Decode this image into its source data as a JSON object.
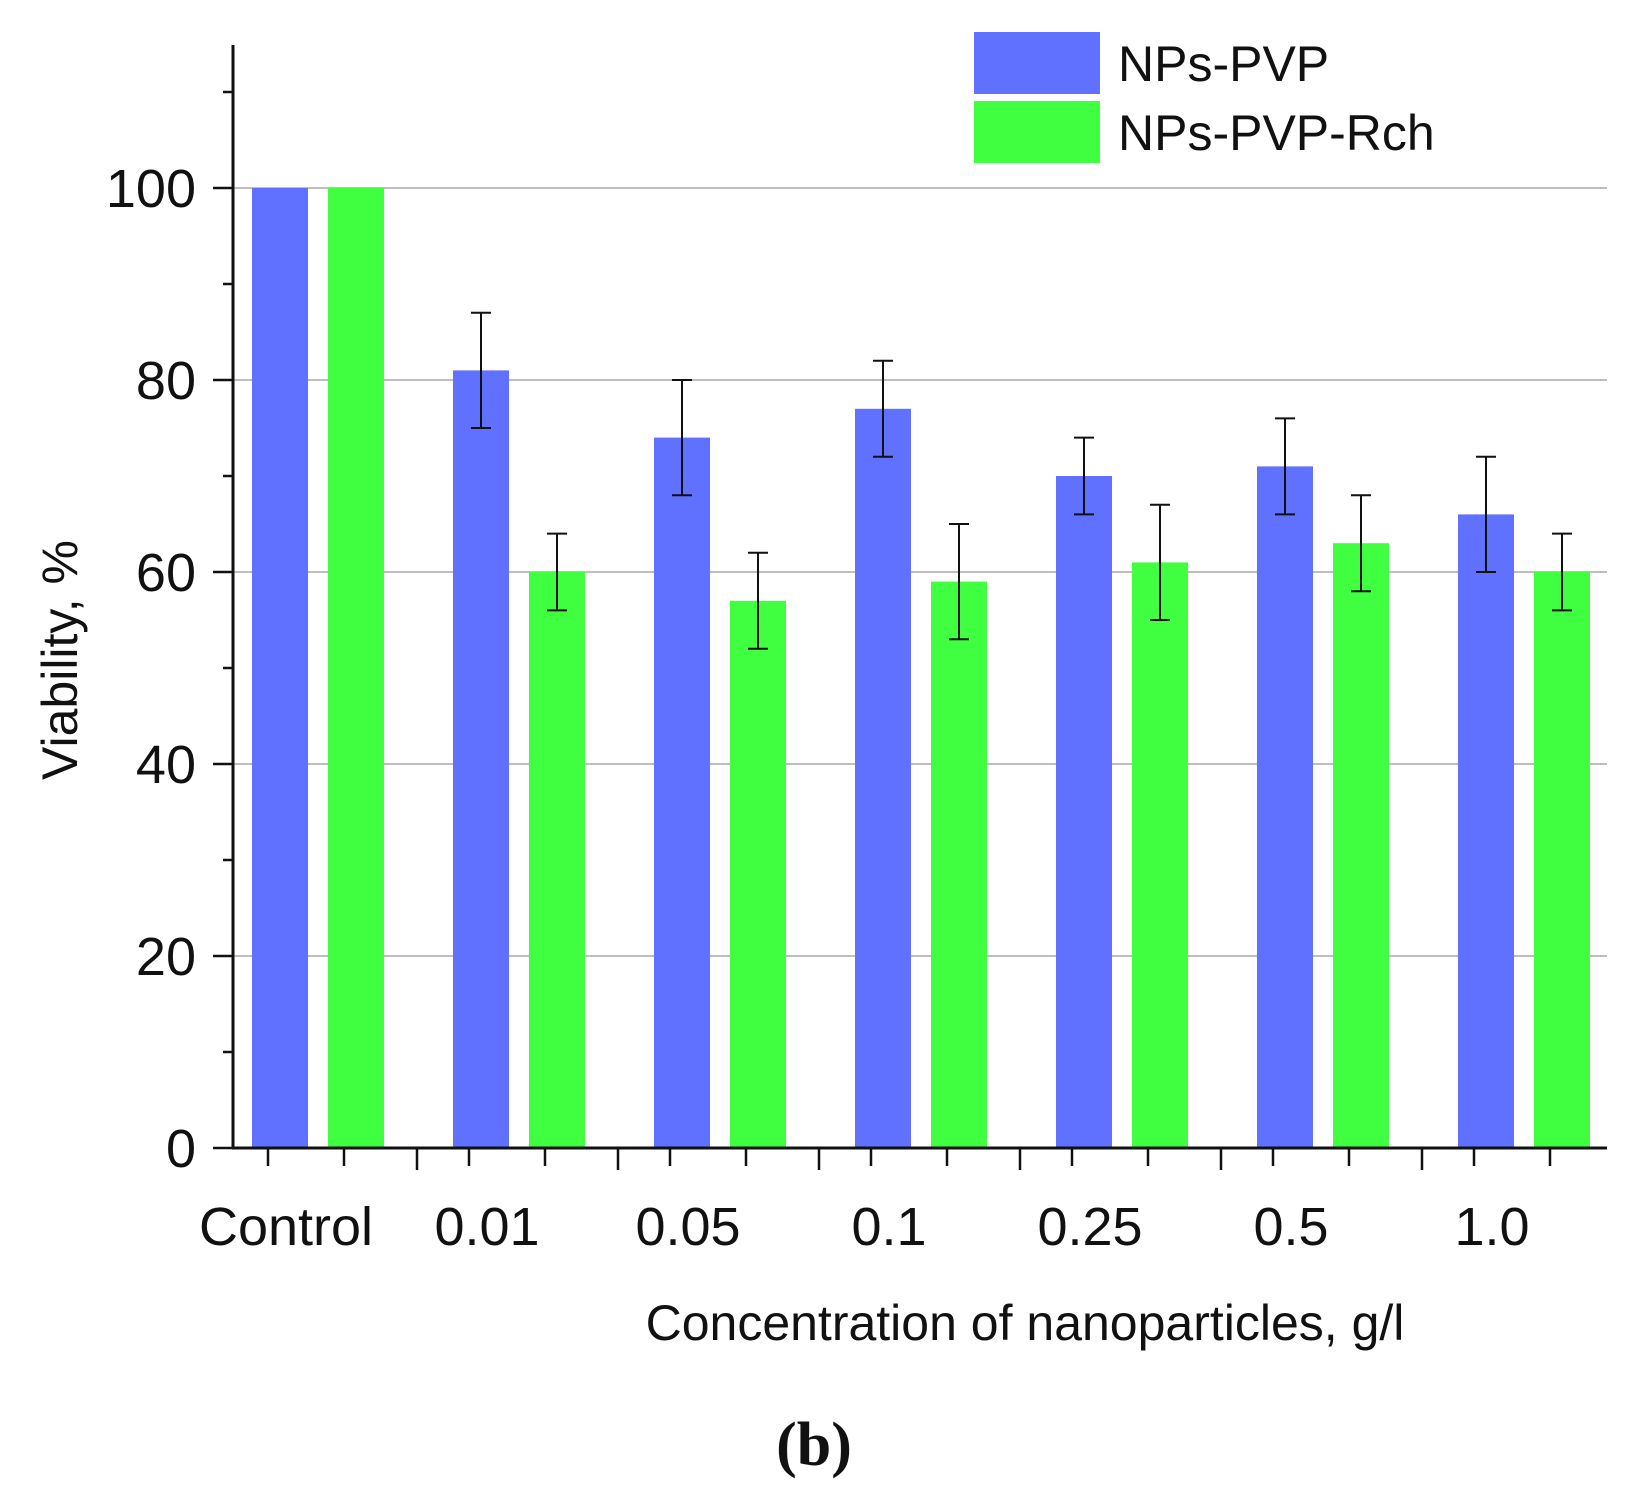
{
  "chart_data": {
    "type": "bar",
    "title": "",
    "xlabel": "Concentration of nanoparticles, g/l",
    "ylabel": "Viability, %",
    "ylim": [
      0,
      115
    ],
    "ymajor_ticks": [
      0,
      20,
      40,
      60,
      80,
      100
    ],
    "yminor_step": 10,
    "grid": true,
    "legend_position": "top-right",
    "panel_label": "(b)",
    "categories": [
      "Control",
      "0.01",
      "0.05",
      "0.1",
      "0.25",
      "0.5",
      "1.0"
    ],
    "series": [
      {
        "name": "NPs-PVP",
        "color": "#6070ff",
        "values": [
          100,
          81,
          74,
          77,
          70,
          71,
          66
        ],
        "errors": [
          0,
          6,
          6,
          5,
          4,
          5,
          6
        ]
      },
      {
        "name": "NPs-PVP-Rch",
        "color": "#40ff40",
        "values": [
          100,
          60,
          57,
          59,
          61,
          63,
          60
        ],
        "errors": [
          0,
          4,
          5,
          6,
          6,
          5,
          4
        ]
      }
    ]
  }
}
